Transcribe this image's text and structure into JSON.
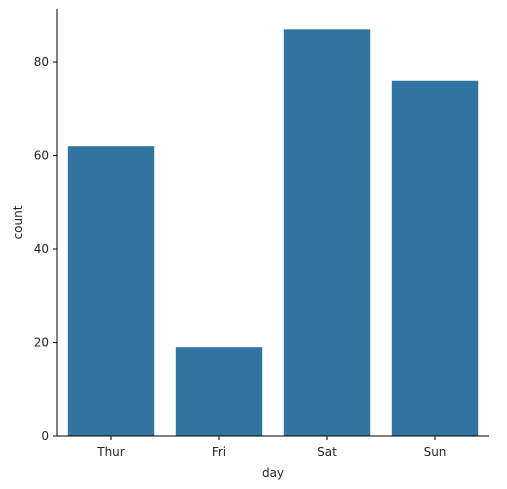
{
  "chart_data": {
    "type": "bar",
    "categories": [
      "Thur",
      "Fri",
      "Sat",
      "Sun"
    ],
    "values": [
      62,
      19,
      87,
      76
    ],
    "title": "",
    "xlabel": "day",
    "ylabel": "count",
    "ylim": [
      0,
      91.35
    ],
    "yticks": [
      0,
      20,
      40,
      60,
      80
    ],
    "grid": false,
    "legend": "none",
    "bar_color": "#3274a1",
    "spines": "left-bottom"
  }
}
